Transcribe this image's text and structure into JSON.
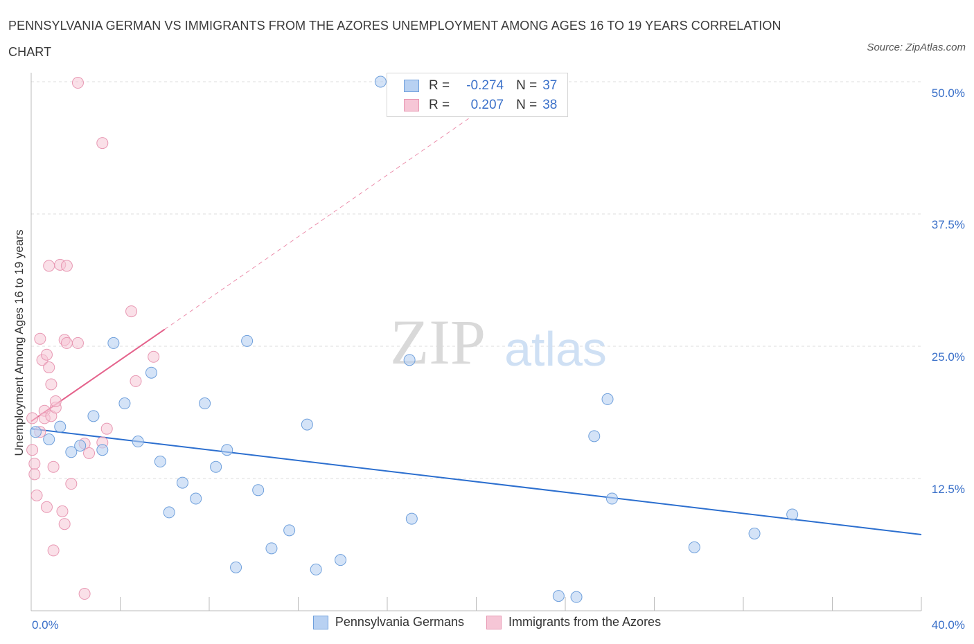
{
  "title": "PENNSYLVANIA GERMAN VS IMMIGRANTS FROM THE AZORES UNEMPLOYMENT AMONG AGES 16 TO 19 YEARS CORRELATION CHART",
  "source": "Source: ZipAtlas.com",
  "watermark": {
    "zip": "ZIP",
    "atlas": "atlas"
  },
  "legend": {
    "r_label": "R =",
    "n_label": "N =",
    "blue": {
      "r": "-0.274",
      "n": "37"
    },
    "pink": {
      "r": "0.207",
      "n": "38"
    }
  },
  "colors": {
    "blue_fill": "#b8d1f2",
    "blue_stroke": "#6fa0dc",
    "blue_line": "#2c6fcf",
    "pink_fill": "#f6c6d6",
    "pink_stroke": "#e898b3",
    "pink_line": "#e4608a",
    "grid": "#dddddd",
    "axis_label": "#3a70c9"
  },
  "chart_data": {
    "type": "scatter",
    "title": "PENNSYLVANIA GERMAN VS IMMIGRANTS FROM THE AZORES UNEMPLOYMENT AMONG AGES 16 TO 19 YEARS CORRELATION CHART",
    "xlabel": "",
    "ylabel": "Unemployment Among Ages 16 to 19 years",
    "xlim": [
      0,
      40
    ],
    "ylim": [
      0,
      50
    ],
    "x_tick_labels": [
      "0.0%",
      "40.0%"
    ],
    "y_ticks": [
      12.5,
      25.0,
      37.5,
      50.0
    ],
    "y_tick_labels": [
      "12.5%",
      "25.0%",
      "37.5%",
      "50.0%"
    ],
    "series": [
      {
        "name": "Pennsylvania Germans",
        "color": "blue",
        "points": [
          [
            0.2,
            16.9
          ],
          [
            0.8,
            16.2
          ],
          [
            1.3,
            17.4
          ],
          [
            1.8,
            15.0
          ],
          [
            2.2,
            15.6
          ],
          [
            2.8,
            18.4
          ],
          [
            3.2,
            15.2
          ],
          [
            3.7,
            25.3
          ],
          [
            4.2,
            19.6
          ],
          [
            4.8,
            16.0
          ],
          [
            5.4,
            22.5
          ],
          [
            5.8,
            14.1
          ],
          [
            6.2,
            9.3
          ],
          [
            6.8,
            12.1
          ],
          [
            7.4,
            10.6
          ],
          [
            7.8,
            19.6
          ],
          [
            8.3,
            13.6
          ],
          [
            8.8,
            15.2
          ],
          [
            9.2,
            4.1
          ],
          [
            9.7,
            25.5
          ],
          [
            10.2,
            11.4
          ],
          [
            10.8,
            5.9
          ],
          [
            11.6,
            7.6
          ],
          [
            12.4,
            17.6
          ],
          [
            12.8,
            3.9
          ],
          [
            13.9,
            4.8
          ],
          [
            15.7,
            50.0
          ],
          [
            17.0,
            23.7
          ],
          [
            17.1,
            8.7
          ],
          [
            23.7,
            1.4
          ],
          [
            24.5,
            1.3
          ],
          [
            25.3,
            16.5
          ],
          [
            25.9,
            20.0
          ],
          [
            26.1,
            10.6
          ],
          [
            29.8,
            6.0
          ],
          [
            32.5,
            7.3
          ],
          [
            34.2,
            9.1
          ]
        ],
        "trend": {
          "x": [
            0,
            40
          ],
          "y": [
            17.2,
            7.2
          ]
        }
      },
      {
        "name": "Immigrants from the Azores",
        "color": "pink",
        "points": [
          [
            0.05,
            18.2
          ],
          [
            0.05,
            15.2
          ],
          [
            0.15,
            13.9
          ],
          [
            0.15,
            12.9
          ],
          [
            0.25,
            10.9
          ],
          [
            0.4,
            16.9
          ],
          [
            0.4,
            25.7
          ],
          [
            0.5,
            23.7
          ],
          [
            0.6,
            18.9
          ],
          [
            0.6,
            18.2
          ],
          [
            0.7,
            9.8
          ],
          [
            0.7,
            24.2
          ],
          [
            0.8,
            23.0
          ],
          [
            0.8,
            32.6
          ],
          [
            0.9,
            21.4
          ],
          [
            0.9,
            18.4
          ],
          [
            1.0,
            5.7
          ],
          [
            1.0,
            13.6
          ],
          [
            1.1,
            19.2
          ],
          [
            1.1,
            19.8
          ],
          [
            1.3,
            32.7
          ],
          [
            1.4,
            9.4
          ],
          [
            1.5,
            8.2
          ],
          [
            1.5,
            25.6
          ],
          [
            1.6,
            25.3
          ],
          [
            1.6,
            32.6
          ],
          [
            1.8,
            12.0
          ],
          [
            2.1,
            25.3
          ],
          [
            2.1,
            49.9
          ],
          [
            2.4,
            15.8
          ],
          [
            2.4,
            1.6
          ],
          [
            2.6,
            14.9
          ],
          [
            3.2,
            44.2
          ],
          [
            3.2,
            15.9
          ],
          [
            3.4,
            17.2
          ],
          [
            4.5,
            28.3
          ],
          [
            4.7,
            21.7
          ],
          [
            5.5,
            24.0
          ]
        ],
        "trend": {
          "x": [
            0,
            6
          ],
          "y": [
            17.9,
            26.6
          ]
        },
        "trend_extended": {
          "x": [
            6,
            20.4
          ],
          "y": [
            26.6,
            47.6
          ]
        }
      }
    ],
    "legend_labels": [
      "Pennsylvania Germans",
      "Immigrants from the Azores"
    ]
  }
}
